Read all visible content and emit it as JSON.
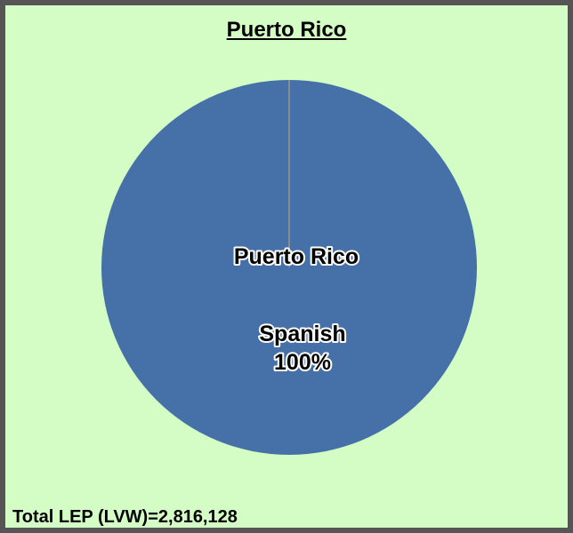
{
  "chart_data": {
    "type": "pie",
    "title": "Puerto Rico",
    "center_label": "Puerto Rico",
    "slices": [
      {
        "label": "Spanish",
        "value": 100,
        "percent_label": "100%"
      }
    ],
    "footer": "Total LEP (LVW)=2,816,128"
  },
  "colors": {
    "background": "#d3fdc4",
    "border": "#555555",
    "slice": "#4571a8",
    "center_label": "#ff0000",
    "seam": "#c7a87a"
  }
}
